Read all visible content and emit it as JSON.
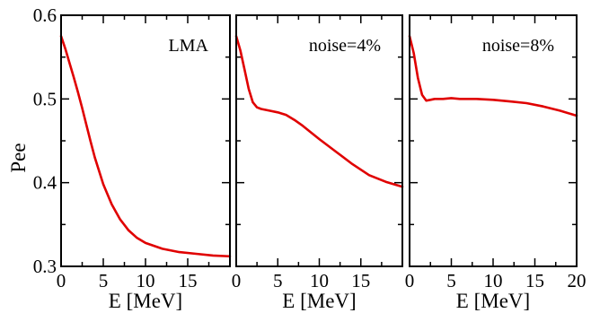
{
  "chart_data": {
    "type": "line",
    "shared_y": {
      "label": "Pee",
      "ylim": [
        0.3,
        0.6
      ],
      "ticks": [
        0.3,
        0.4,
        0.5,
        0.6
      ],
      "tick_labels": [
        "0.3",
        "0.4",
        "0.5",
        "0.6"
      ]
    },
    "line_color": "#e00000",
    "panels": [
      {
        "annotation": "LMA",
        "xlabel": "E [MeV]",
        "xlim": [
          0,
          20
        ],
        "major_ticks": [
          0,
          5,
          10,
          15,
          20
        ],
        "tick_labels": [
          "0",
          "5",
          "10",
          "15"
        ],
        "x": [
          0,
          0.5,
          1,
          1.5,
          2,
          2.5,
          3,
          3.5,
          4,
          5,
          6,
          7,
          8,
          9,
          10,
          12,
          14,
          16,
          18,
          20
        ],
        "y": [
          0.575,
          0.56,
          0.543,
          0.526,
          0.508,
          0.489,
          0.469,
          0.449,
          0.43,
          0.398,
          0.374,
          0.356,
          0.343,
          0.334,
          0.328,
          0.321,
          0.317,
          0.315,
          0.313,
          0.312
        ]
      },
      {
        "annotation": "noise=4%",
        "xlabel": "E [MeV]",
        "xlim": [
          0,
          20
        ],
        "major_ticks": [
          0,
          5,
          10,
          15,
          20
        ],
        "tick_labels": [
          "0",
          "5",
          "10",
          "15"
        ],
        "x": [
          0,
          0.5,
          1,
          1.5,
          2,
          2.5,
          3,
          4,
          5,
          6,
          7,
          8,
          9,
          10,
          12,
          14,
          16,
          18,
          20
        ],
        "y": [
          0.575,
          0.558,
          0.535,
          0.512,
          0.496,
          0.49,
          0.488,
          0.486,
          0.484,
          0.481,
          0.475,
          0.468,
          0.46,
          0.452,
          0.437,
          0.422,
          0.409,
          0.401,
          0.395
        ]
      },
      {
        "annotation": "noise=8%",
        "xlabel": "E [MeV]",
        "xlim": [
          0,
          20
        ],
        "major_ticks": [
          0,
          5,
          10,
          15,
          20
        ],
        "tick_labels": [
          "0",
          "5",
          "10",
          "15",
          "20"
        ],
        "x": [
          0,
          0.5,
          1,
          1.5,
          2,
          2.5,
          3,
          4,
          5,
          6,
          8,
          10,
          12,
          14,
          16,
          18,
          20
        ],
        "y": [
          0.575,
          0.555,
          0.525,
          0.505,
          0.498,
          0.499,
          0.5,
          0.5,
          0.501,
          0.5,
          0.5,
          0.499,
          0.497,
          0.495,
          0.491,
          0.486,
          0.48
        ]
      }
    ]
  }
}
